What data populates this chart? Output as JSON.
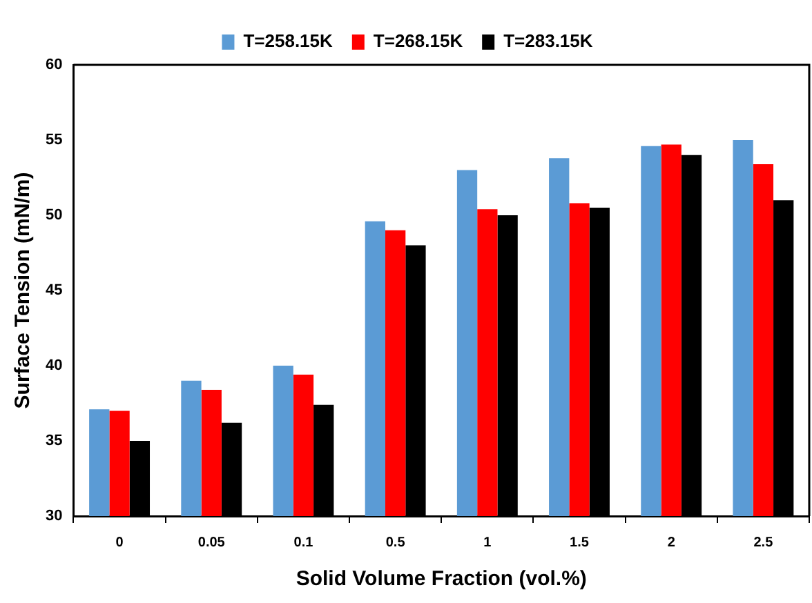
{
  "chart_data": {
    "type": "bar",
    "xlabel": "Solid Volume Fraction (vol.%)",
    "ylabel": "Surface Tension (mN/m)",
    "categories": [
      "0",
      "0.05",
      "0.1",
      "0.5",
      "1",
      "1.5",
      "2",
      "2.5"
    ],
    "series": [
      {
        "name": "T=258.15K",
        "color": "#5b9bd5",
        "values": [
          37.1,
          39.0,
          40.0,
          49.6,
          53.0,
          53.8,
          54.6,
          55.0
        ]
      },
      {
        "name": "T=268.15K",
        "color": "#ff0000",
        "values": [
          37.0,
          38.4,
          39.4,
          49.0,
          50.4,
          50.8,
          54.7,
          53.4
        ]
      },
      {
        "name": "T=283.15K",
        "color": "#000000",
        "values": [
          35.0,
          36.2,
          37.4,
          48.0,
          50.0,
          50.5,
          54.0,
          51.0
        ]
      }
    ],
    "ylim": [
      30,
      60
    ],
    "yticks": [
      30,
      35,
      40,
      45,
      50,
      55,
      60
    ],
    "grid": false,
    "legend": "top"
  }
}
